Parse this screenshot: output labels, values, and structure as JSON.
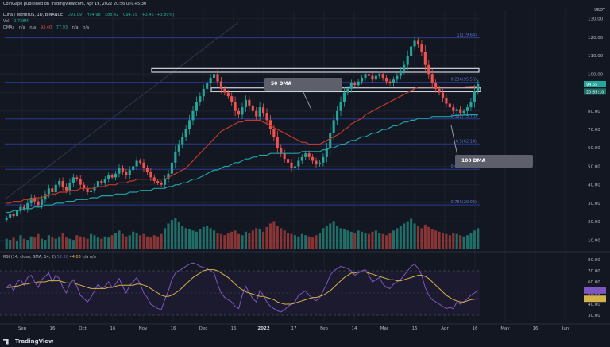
{
  "header": {
    "published": "CoinGape published on TradingView.com, Apr 19, 2022 20:56 UTC+5:30",
    "symbol": "Luna / TetherUS, 1D, BINANCE",
    "ohlc": [
      "O91.09",
      "H94.98",
      "L88.42",
      "C94.55",
      "+3.46 (+3.80%)"
    ],
    "vol_label": "Vol",
    "vol_value": "2.738M",
    "dma_label": "DMAs",
    "dma_values": [
      "n/a",
      "n/a",
      "93.40",
      "77.93",
      "n/a",
      "n/a"
    ],
    "currency": "USDT"
  },
  "logo": "TradingView",
  "annotations": {
    "dma50": "50 DMA",
    "dma100": "100 DMA"
  },
  "colors": {
    "background": "#131722",
    "up": "#26a69a",
    "down": "#ef5350",
    "dma50": "#c0392b",
    "dma100": "#1fa3a3",
    "fib": "#2a3a8f",
    "rsi": "#7e57c2",
    "rsi_ma": "#d4b24c",
    "annotation": "#5d606b"
  },
  "chart_data": [
    {
      "type": "candlestick",
      "x_ticks": [
        "Sep",
        "16",
        "Oct",
        "16",
        "Nov",
        "16",
        "Dec",
        "16",
        "2022",
        "17",
        "Feb",
        "14",
        "Mar",
        "16",
        "Apr",
        "16",
        "May",
        "16",
        "Jun"
      ],
      "y_ticks": [
        10,
        20,
        30,
        40,
        50,
        60,
        70,
        80,
        90,
        100,
        110,
        120,
        130
      ],
      "ylim": [
        5,
        135
      ],
      "fib_levels": [
        {
          "label": "1(119.64)",
          "value": 119.64
        },
        {
          "label": "0.236(95.56)",
          "value": 95.56
        },
        {
          "label": "0.382(75.70)",
          "value": 75.7
        },
        {
          "label": "0.5(62.14)",
          "value": 62.14
        },
        {
          "label": "0.618(48.38)",
          "value": 48.38
        },
        {
          "label": "0.786(29.06)",
          "value": 29.06
        }
      ],
      "resistance_zones": [
        [
          101,
          103
        ],
        [
          90.5,
          92.5
        ]
      ],
      "price_labels": [
        {
          "value": 94.55,
          "text": "94.55"
        },
        {
          "value": 90.5,
          "text": "20:35:10"
        }
      ],
      "candle_count": 135,
      "close": [
        22,
        24,
        23,
        26,
        28,
        27,
        30,
        33,
        31,
        29,
        32,
        35,
        38,
        36,
        40,
        42,
        39,
        37,
        41,
        44,
        43,
        40,
        38,
        36,
        37,
        39,
        42,
        41,
        43,
        45,
        44,
        46,
        49,
        47,
        45,
        48,
        50,
        53,
        52,
        49,
        47,
        44,
        42,
        41,
        40,
        43,
        46,
        52,
        58,
        62,
        66,
        70,
        75,
        80,
        85,
        88,
        92,
        95,
        98,
        100,
        96,
        92,
        90,
        88,
        85,
        80,
        78,
        82,
        86,
        83,
        80,
        77,
        82,
        79,
        75,
        70,
        66,
        60,
        57,
        54,
        52,
        49,
        50,
        53,
        55,
        57,
        55,
        53,
        51,
        52,
        55,
        60,
        68,
        75,
        80,
        85,
        90,
        92,
        95,
        94,
        96,
        98,
        100,
        99,
        97,
        99,
        100,
        98,
        96,
        95,
        97,
        99,
        102,
        105,
        110,
        115,
        118,
        116,
        112,
        105,
        100,
        95,
        92,
        90,
        87,
        84,
        82,
        80,
        81,
        79,
        80,
        82,
        85,
        91,
        94.55
      ],
      "volume": [
        9,
        8,
        10,
        7,
        12,
        9,
        8,
        11,
        10,
        13,
        9,
        8,
        12,
        10,
        9,
        11,
        14,
        10,
        9,
        8,
        12,
        11,
        10,
        9,
        13,
        12,
        10,
        9,
        11,
        10,
        12,
        14,
        16,
        13,
        11,
        12,
        15,
        14,
        12,
        13,
        11,
        10,
        12,
        11,
        13,
        18,
        22,
        25,
        27,
        23,
        20,
        18,
        17,
        16,
        15,
        17,
        19,
        20,
        18,
        16,
        14,
        13,
        12,
        14,
        15,
        16,
        13,
        12,
        15,
        14,
        16,
        18,
        17,
        15,
        19,
        22,
        24,
        20,
        18,
        16,
        14,
        13,
        12,
        11,
        13,
        12,
        11,
        10,
        12,
        14,
        18,
        20,
        22,
        24,
        20,
        18,
        17,
        16,
        15,
        14,
        16,
        15,
        14,
        13,
        15,
        16,
        14,
        13,
        12,
        14,
        16,
        18,
        20,
        22,
        24,
        26,
        22,
        20,
        18,
        21,
        19,
        17,
        16,
        15,
        14,
        13,
        12,
        14,
        13,
        12,
        11,
        12,
        14,
        16,
        18
      ],
      "dma50": [
        30,
        30,
        31,
        31,
        31,
        32,
        32,
        32,
        33,
        33,
        33,
        34,
        34,
        35,
        35,
        36,
        36,
        36,
        37,
        37,
        37,
        38,
        38,
        38,
        38,
        38,
        39,
        39,
        39,
        40,
        40,
        40,
        41,
        41,
        41,
        42,
        42,
        43,
        43,
        43,
        43,
        43,
        43,
        43,
        43,
        43,
        44,
        45,
        46,
        47,
        48,
        49,
        51,
        53,
        55,
        57,
        59,
        61,
        63,
        65,
        67,
        69,
        70,
        71,
        72,
        73,
        74,
        74,
        75,
        75,
        75,
        75,
        75,
        74,
        73,
        72,
        71,
        70,
        69,
        68,
        67,
        66,
        65,
        64,
        63,
        63,
        62,
        62,
        62,
        62,
        63,
        64,
        65,
        66,
        67,
        68,
        70,
        71,
        73,
        74,
        75,
        76,
        78,
        79,
        80,
        81,
        82,
        83,
        84,
        85,
        86,
        87,
        88,
        89,
        90,
        91,
        92,
        93,
        93,
        93,
        93,
        93,
        93,
        93,
        93,
        93,
        93,
        93,
        93,
        93,
        93,
        93.2,
        93.3,
        93.4,
        93.4
      ],
      "dma100": [
        25,
        25,
        26,
        26,
        26,
        27,
        27,
        27,
        28,
        28,
        28,
        29,
        29,
        29,
        30,
        30,
        30,
        31,
        31,
        31,
        32,
        32,
        32,
        32,
        33,
        33,
        33,
        34,
        34,
        34,
        34,
        35,
        35,
        35,
        35,
        36,
        36,
        36,
        37,
        37,
        37,
        37,
        38,
        38,
        38,
        38,
        39,
        39,
        40,
        40,
        41,
        41,
        42,
        43,
        43,
        44,
        45,
        46,
        47,
        48,
        48,
        49,
        50,
        50,
        51,
        52,
        52,
        53,
        54,
        54,
        55,
        55,
        56,
        56,
        56,
        57,
        57,
        57,
        57,
        57,
        57,
        57,
        57,
        57,
        58,
        58,
        58,
        58,
        58,
        58,
        59,
        59,
        60,
        60,
        61,
        62,
        62,
        63,
        64,
        64,
        65,
        66,
        66,
        67,
        68,
        68,
        69,
        70,
        70,
        71,
        72,
        72,
        73,
        74,
        74,
        75,
        75,
        76,
        76,
        76,
        76,
        77,
        77,
        77,
        77,
        77,
        77,
        77.5,
        77.6,
        77.7,
        77.8,
        77.8,
        77.9,
        77.9,
        77.93
      ]
    },
    {
      "type": "line",
      "title": "RSI (14, close, SMA, 14, 2)",
      "values_label": [
        "52.28",
        "44.83",
        "n/a",
        "n/a"
      ],
      "y_ticks": [
        30,
        40,
        50,
        60,
        70,
        80
      ],
      "ylim": [
        25,
        85
      ],
      "band": [
        30,
        70
      ],
      "rsi": [
        55,
        58,
        52,
        60,
        62,
        57,
        64,
        66,
        60,
        55,
        62,
        65,
        68,
        60,
        66,
        63,
        55,
        50,
        58,
        62,
        56,
        48,
        45,
        42,
        46,
        52,
        58,
        54,
        56,
        60,
        55,
        58,
        63,
        56,
        50,
        57,
        60,
        64,
        58,
        50,
        46,
        40,
        38,
        36,
        35,
        44,
        52,
        62,
        68,
        70,
        72,
        74,
        76,
        77,
        76,
        74,
        73,
        72,
        70,
        68,
        58,
        50,
        46,
        44,
        42,
        38,
        36,
        48,
        56,
        50,
        45,
        42,
        52,
        48,
        42,
        38,
        36,
        34,
        33,
        35,
        38,
        40,
        42,
        48,
        50,
        52,
        48,
        45,
        43,
        46,
        52,
        58,
        66,
        70,
        72,
        74,
        73,
        72,
        70,
        66,
        68,
        70,
        71,
        66,
        60,
        62,
        64,
        58,
        55,
        54,
        58,
        60,
        62,
        66,
        70,
        74,
        76,
        72,
        66,
        55,
        48,
        44,
        42,
        40,
        38,
        36,
        37,
        36,
        42,
        40,
        42,
        45,
        48,
        50,
        52.28
      ],
      "rsi_ma": [
        55,
        55,
        56,
        56,
        57,
        58,
        58,
        59,
        59,
        60,
        60,
        60,
        61,
        61,
        61,
        61,
        60,
        59,
        59,
        59,
        58,
        57,
        56,
        55,
        54,
        54,
        54,
        54,
        54,
        55,
        55,
        56,
        57,
        57,
        57,
        57,
        57,
        58,
        58,
        57,
        56,
        54,
        52,
        50,
        48,
        47,
        47,
        48,
        50,
        52,
        55,
        58,
        61,
        64,
        66,
        68,
        70,
        71,
        71,
        71,
        70,
        68,
        66,
        64,
        61,
        58,
        55,
        53,
        51,
        50,
        49,
        48,
        47,
        47,
        46,
        45,
        44,
        42,
        41,
        40,
        40,
        40,
        41,
        42,
        43,
        44,
        45,
        46,
        46,
        47,
        48,
        50,
        52,
        55,
        58,
        61,
        64,
        66,
        68,
        68,
        69,
        69,
        69,
        68,
        67,
        66,
        65,
        64,
        63,
        62,
        62,
        61,
        61,
        62,
        63,
        64,
        65,
        66,
        66,
        65,
        63,
        60,
        57,
        54,
        51,
        48,
        46,
        44,
        43,
        42,
        42,
        43,
        44,
        44.5,
        44.83
      ]
    }
  ]
}
